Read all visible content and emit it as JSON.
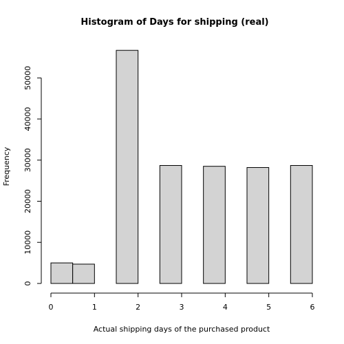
{
  "chart_data": {
    "type": "bar",
    "title": "Histogram of Days for shipping (real)",
    "xlabel": "Actual shipping days of the purchased product",
    "ylabel": "Frequency",
    "xlim": [
      0,
      6
    ],
    "ylim": [
      0,
      60000
    ],
    "x_ticks": [
      0,
      1,
      2,
      3,
      4,
      5,
      6
    ],
    "y_ticks": [
      0,
      10000,
      20000,
      30000,
      40000,
      50000
    ],
    "bins": [
      {
        "from": 0,
        "to": 0.5,
        "value": 5000
      },
      {
        "from": 0.5,
        "to": 1,
        "value": 4700
      },
      {
        "from": 1,
        "to": 1.5,
        "value": 0
      },
      {
        "from": 1.5,
        "to": 2,
        "value": 56700
      },
      {
        "from": 2,
        "to": 2.5,
        "value": 0
      },
      {
        "from": 2.5,
        "to": 3,
        "value": 28700
      },
      {
        "from": 3,
        "to": 3.5,
        "value": 0
      },
      {
        "from": 3.5,
        "to": 4,
        "value": 28500
      },
      {
        "from": 4,
        "to": 4.5,
        "value": 0
      },
      {
        "from": 4.5,
        "to": 5,
        "value": 28200
      },
      {
        "from": 5,
        "to": 5.5,
        "value": 0
      },
      {
        "from": 5.5,
        "to": 6,
        "value": 28700
      }
    ],
    "bar_color": "#d3d3d3",
    "grid": false,
    "legend": "none"
  }
}
